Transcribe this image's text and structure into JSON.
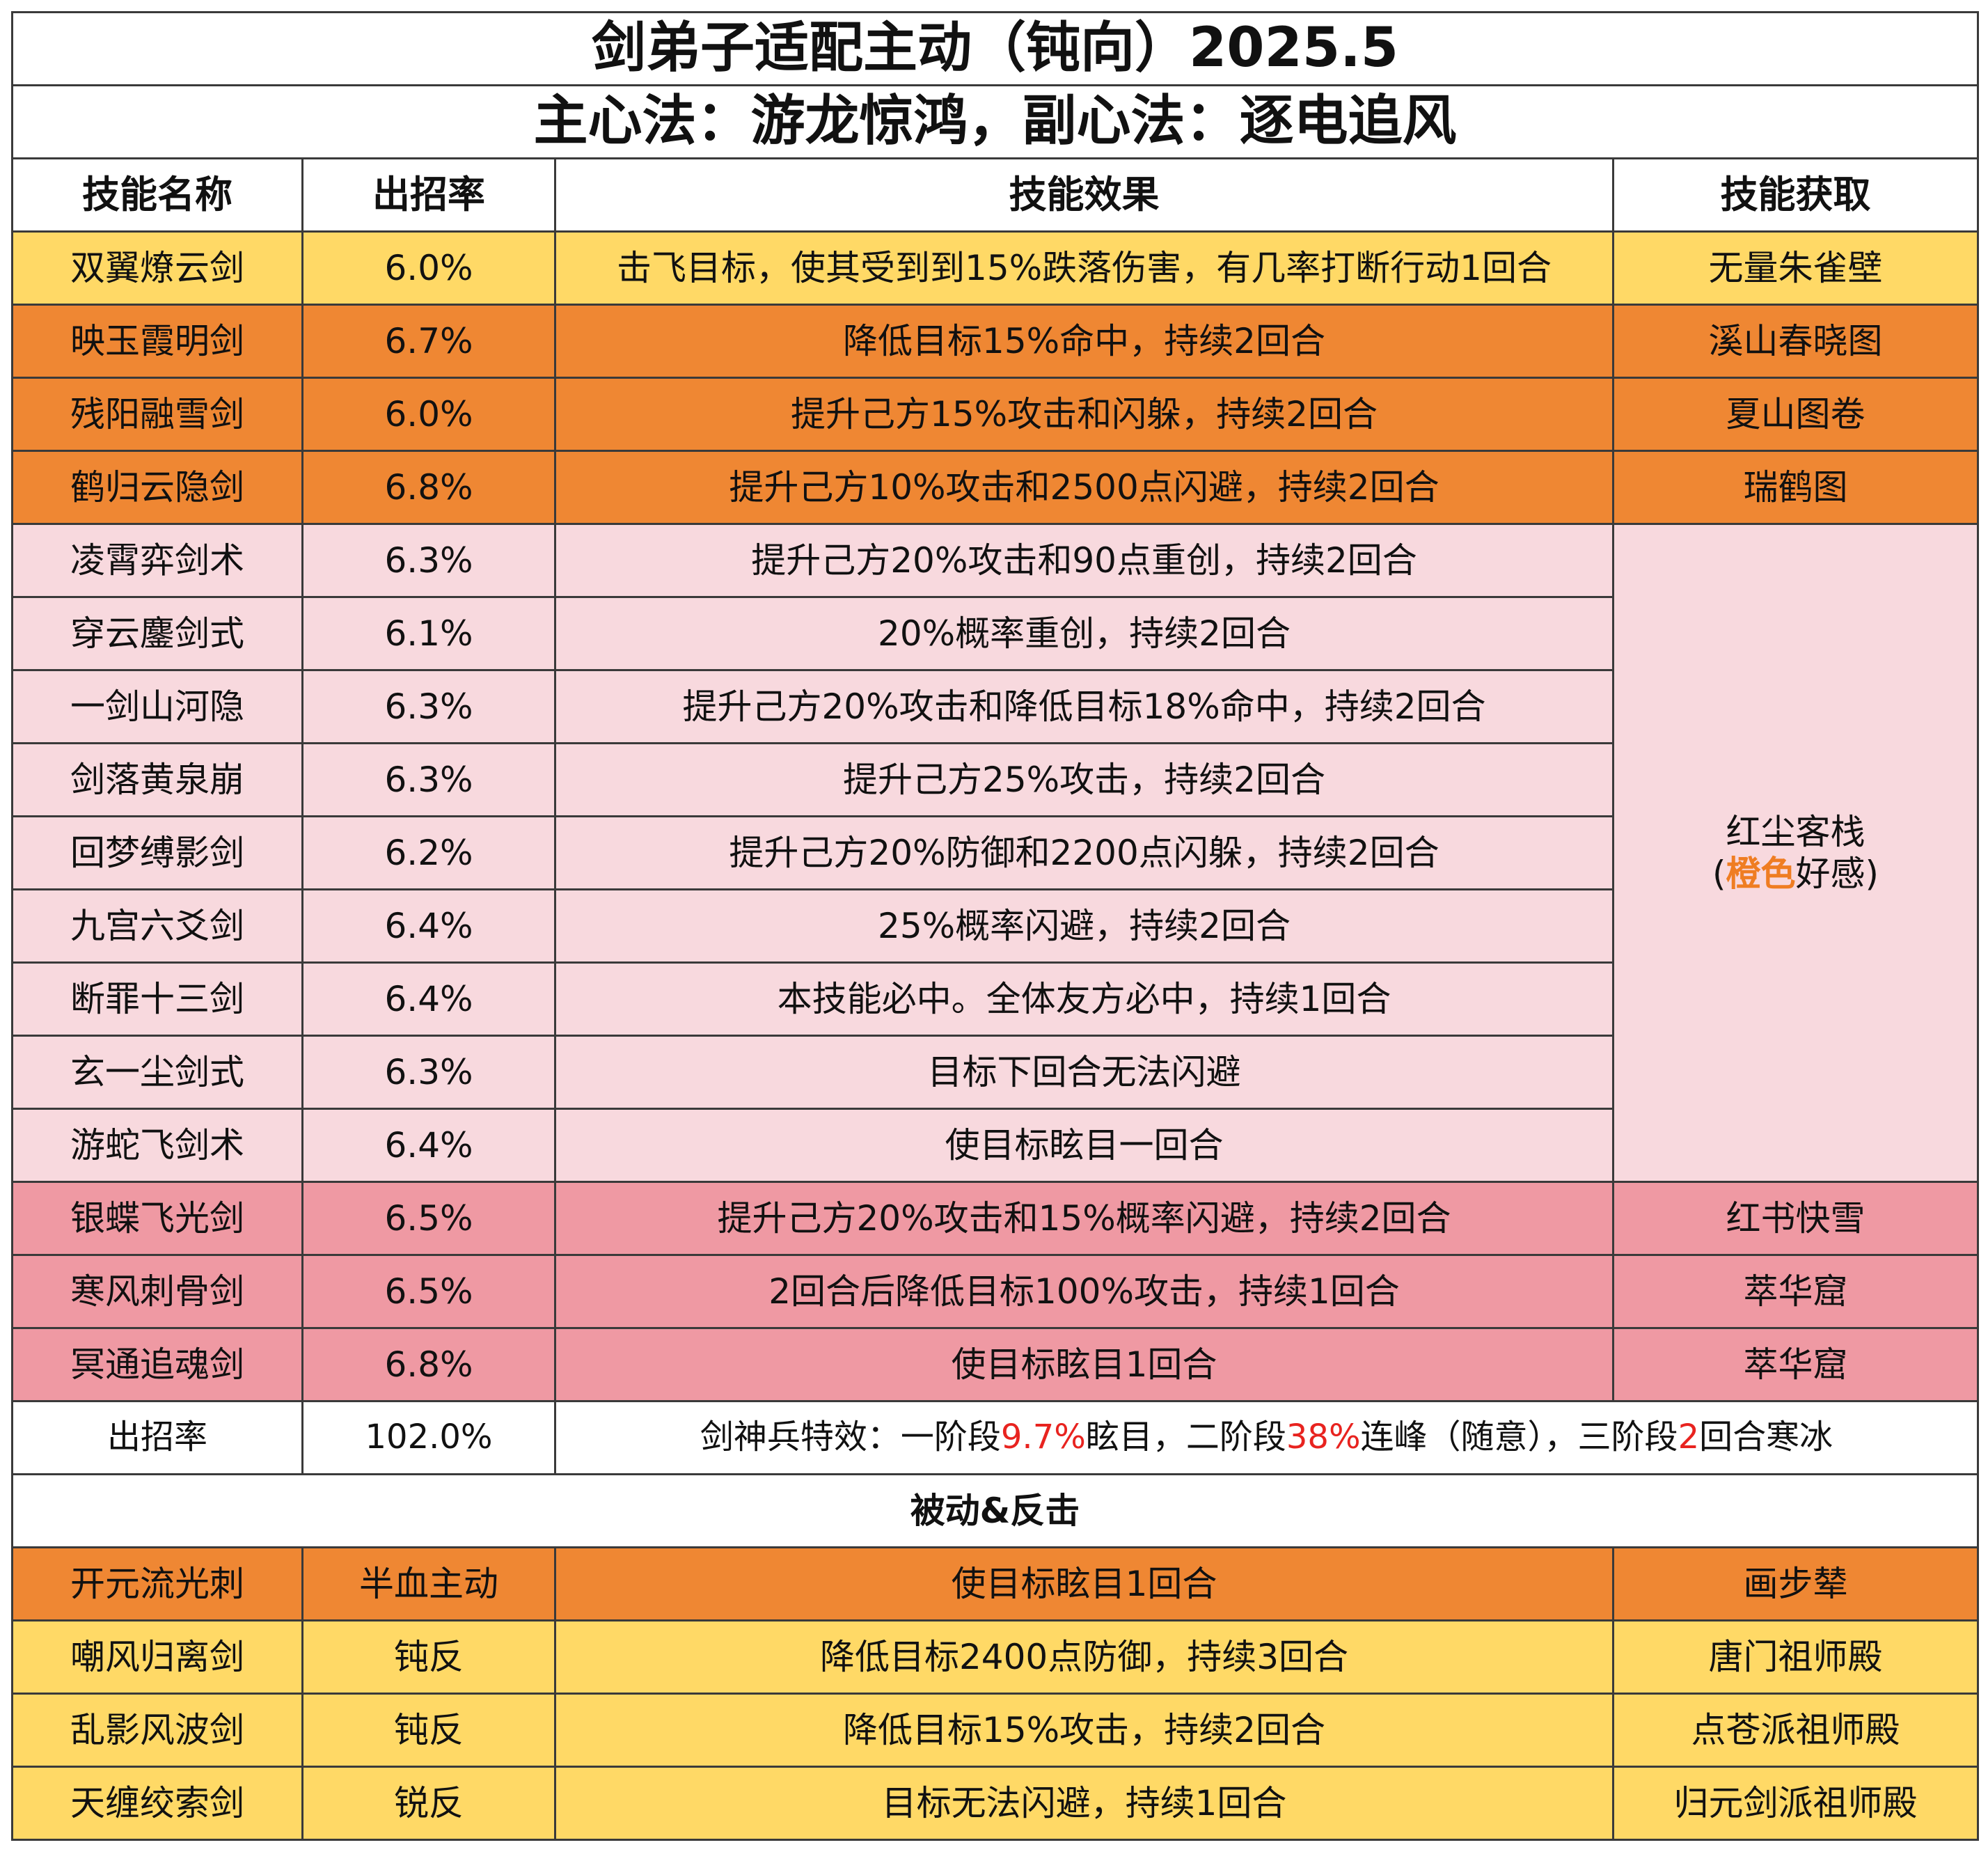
{
  "title": "剑弟子适配主动（钝向）2025.5",
  "subtitle": "主心法：游龙惊鸿，副心法：逐电追风",
  "headers": {
    "name": "技能名称",
    "rate": "出招率",
    "effect": "技能效果",
    "source": "技能获取"
  },
  "colors": {
    "yellow": "#ffd966",
    "orange": "#ef8733",
    "pink": "#f8d9de",
    "rose": "#ef99a3",
    "red_text": "#e8231f",
    "orange_text": "#ef7d22"
  },
  "rows": [
    {
      "name": "双翼燎云剑",
      "rate": "6.0%",
      "effect": "击飞目标，使其受到到15%跌落伤害，有几率打断行动1回合",
      "source": "无量朱雀壁",
      "color": "yellow"
    },
    {
      "name": "映玉霞明剑",
      "rate": "6.7%",
      "effect": "降低目标15%命中，持续2回合",
      "source": "溪山春晓图",
      "color": "orange"
    },
    {
      "name": "残阳融雪剑",
      "rate": "6.0%",
      "effect": "提升己方15%攻击和闪躲，持续2回合",
      "source": "夏山图卷",
      "color": "orange"
    },
    {
      "name": "鹤归云隐剑",
      "rate": "6.8%",
      "effect": "提升己方10%攻击和2500点闪避，持续2回合",
      "source": "瑞鹤图",
      "color": "orange"
    },
    {
      "name": "凌霄弈剑术",
      "rate": "6.3%",
      "effect": "提升己方20%攻击和90点重创，持续2回合",
      "color": "pink"
    },
    {
      "name": "穿云鏖剑式",
      "rate": "6.1%",
      "effect": "20%概率重创，持续2回合",
      "color": "pink"
    },
    {
      "name": "一剑山河隐",
      "rate": "6.3%",
      "effect": "提升己方20%攻击和降低目标18%命中，持续2回合",
      "color": "pink"
    },
    {
      "name": "剑落黄泉崩",
      "rate": "6.3%",
      "effect": "提升己方25%攻击，持续2回合",
      "color": "pink"
    },
    {
      "name": "回梦缚影剑",
      "rate": "6.2%",
      "effect": "提升己方20%防御和2200点闪躲，持续2回合",
      "color": "pink"
    },
    {
      "name": "九宫六爻剑",
      "rate": "6.4%",
      "effect": "25%概率闪避，持续2回合",
      "color": "pink"
    },
    {
      "name": "断罪十三剑",
      "rate": "6.4%",
      "effect": "本技能必中。全体友方必中，持续1回合",
      "color": "pink"
    },
    {
      "name": "玄一尘剑式",
      "rate": "6.3%",
      "effect": "目标下回合无法闪避",
      "color": "pink"
    },
    {
      "name": "游蛇飞剑术",
      "rate": "6.4%",
      "effect": "使目标眩目一回合",
      "color": "pink"
    },
    {
      "name": "银蝶飞光剑",
      "rate": "6.5%",
      "effect": "提升己方20%攻击和15%概率闪避，持续2回合",
      "source": "红书快雪",
      "color": "rose"
    },
    {
      "name": "寒风刺骨剑",
      "rate": "6.5%",
      "effect": "2回合后降低目标100%攻击，持续1回合",
      "source": "萃华窟",
      "color": "rose"
    },
    {
      "name": "冥通追魂剑",
      "rate": "6.8%",
      "effect": "使目标眩目1回合",
      "source": "萃华窟",
      "color": "rose"
    }
  ],
  "merged_source": {
    "line1": "红尘客栈",
    "open_paren": "(",
    "highlight": "橙色",
    "rest": "好感)"
  },
  "total": {
    "label": "出招率",
    "value": "102.0%",
    "effect_parts": [
      "剑神兵特效：一阶段",
      "9.7%",
      "眩目，二阶段",
      "38%",
      "连峰（随意），三阶段",
      "2",
      "回合寒冰"
    ]
  },
  "section_title": "被动&反击",
  "passive_rows": [
    {
      "name": "开元流光刺",
      "type": "半血主动",
      "effect": "使目标眩目1回合",
      "source": "画步辇",
      "color": "orange"
    },
    {
      "name": "嘲风归离剑",
      "type": "钝反",
      "effect": "降低目标2400点防御，持续3回合",
      "source": "唐门祖师殿",
      "color": "yellow"
    },
    {
      "name": "乱影风波剑",
      "type": "钝反",
      "effect": "降低目标15%攻击，持续2回合",
      "source": "点苍派祖师殿",
      "color": "yellow"
    },
    {
      "name": "天缠绞索剑",
      "type": "锐反",
      "effect": "目标无法闪避，持续1回合",
      "source": "归元剑派祖师殿",
      "color": "yellow"
    }
  ]
}
